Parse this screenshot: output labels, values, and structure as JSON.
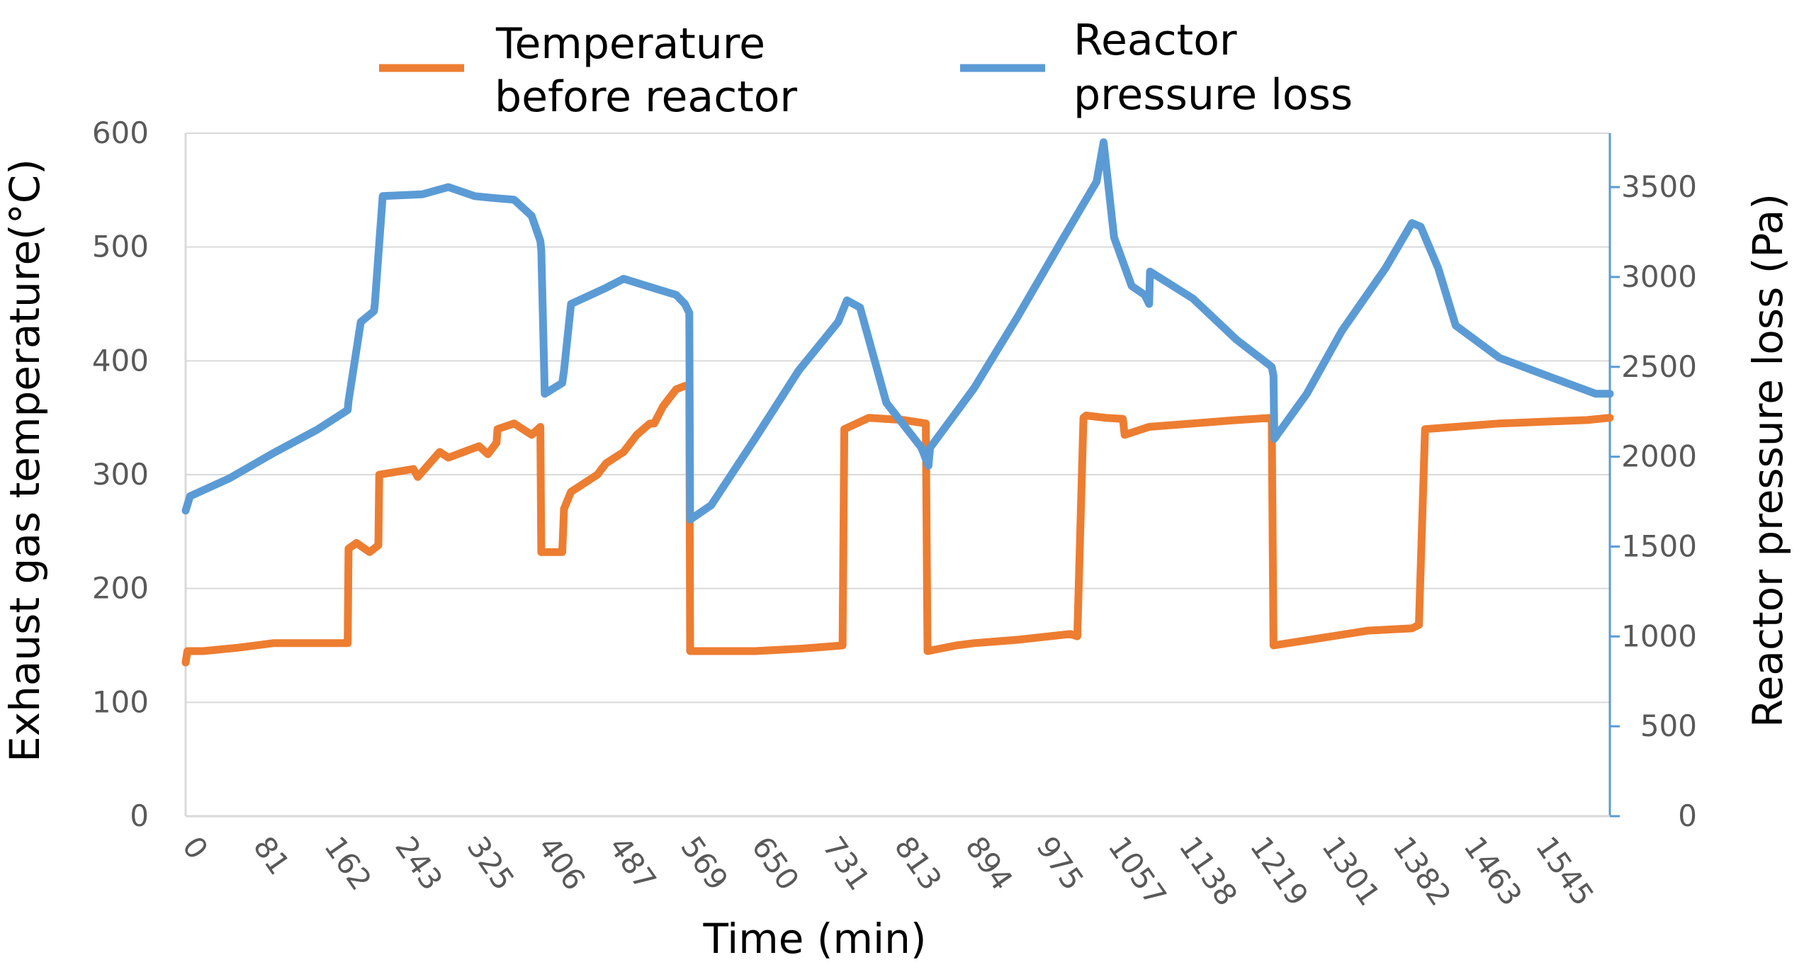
{
  "chart_data": {
    "type": "line",
    "xlabel": "Time (min)",
    "ylabel_left": "Exhaust gas temperature(°C)",
    "ylabel_right": "Reactor pressure loss (Pa)",
    "xlim": [
      0,
      1626
    ],
    "ylim_left": [
      0,
      600
    ],
    "ylim_right": [
      0,
      3800
    ],
    "x_ticks": [
      "0",
      "81",
      "162",
      "243",
      "325",
      "406",
      "487",
      "569",
      "650",
      "731",
      "813",
      "894",
      "975",
      "1057",
      "1138",
      "1219",
      "1301",
      "1382",
      "1463",
      "1545"
    ],
    "x_tick_values": [
      0,
      81,
      162,
      243,
      325,
      406,
      487,
      569,
      650,
      731,
      813,
      894,
      975,
      1057,
      1138,
      1219,
      1301,
      1382,
      1463,
      1545
    ],
    "y_ticks_left": [
      "0",
      "100",
      "200",
      "300",
      "400",
      "500",
      "600"
    ],
    "y_tick_values_left": [
      0,
      100,
      200,
      300,
      400,
      500,
      600
    ],
    "y_ticks_right": [
      "0",
      "500",
      "1000",
      "1500",
      "2000",
      "2500",
      "3000",
      "3500"
    ],
    "y_tick_values_right": [
      0,
      500,
      1000,
      1500,
      2000,
      2500,
      3000,
      3500
    ],
    "grid": true,
    "legend_position": "top",
    "colors": {
      "temperature": "#ED7D31",
      "pressure": "#5B9BD5",
      "grid": "#D9D9D9",
      "right_axis": "#5B9BD5"
    },
    "series": [
      {
        "name": "Temperature before reactor",
        "legend_lines": [
          "Temperature",
          "before reactor"
        ],
        "axis": "left",
        "x": [
          0,
          2,
          20,
          60,
          100,
          140,
          185,
          186,
          195,
          210,
          220,
          221,
          260,
          265,
          290,
          300,
          335,
          345,
          355,
          356,
          375,
          395,
          405,
          406,
          430,
          432,
          440,
          450,
          470,
          480,
          500,
          515,
          530,
          535,
          545,
          555,
          560,
          570,
          575,
          576,
          600,
          650,
          700,
          750,
          752,
          780,
          820,
          845,
          847,
          880,
          900,
          950,
          1010,
          1018,
          1025,
          1028,
          1050,
          1070,
          1072,
          1100,
          1200,
          1240,
          1242,
          1300,
          1350,
          1400,
          1408,
          1415,
          1450,
          1500,
          1600,
          1626
        ],
        "values": [
          135,
          145,
          145,
          148,
          152,
          152,
          152,
          235,
          240,
          232,
          238,
          300,
          305,
          298,
          320,
          315,
          325,
          318,
          328,
          340,
          345,
          335,
          342,
          232,
          232,
          270,
          285,
          290,
          300,
          310,
          320,
          335,
          345,
          345,
          360,
          370,
          375,
          378,
          378,
          145,
          145,
          145,
          147,
          150,
          340,
          350,
          348,
          345,
          145,
          150,
          152,
          155,
          160,
          158,
          350,
          352,
          350,
          349,
          335,
          342,
          348,
          350,
          150,
          157,
          163,
          165,
          168,
          340,
          342,
          345,
          348,
          350
        ]
      },
      {
        "name": "Reactor pressure loss",
        "legend_lines": [
          "Reactor",
          "pressure loss"
        ],
        "axis": "right",
        "x": [
          0,
          5,
          50,
          100,
          150,
          185,
          186,
          200,
          215,
          216,
          225,
          270,
          300,
          330,
          350,
          375,
          395,
          405,
          406,
          410,
          430,
          432,
          440,
          480,
          500,
          520,
          540,
          560,
          570,
          575,
          576,
          600,
          650,
          700,
          745,
          755,
          770,
          800,
          840,
          848,
          850,
          900,
          950,
          1000,
          1040,
          1048,
          1060,
          1080,
          1095,
          1100,
          1101,
          1150,
          1200,
          1240,
          1242,
          1243,
          1280,
          1320,
          1370,
          1400,
          1410,
          1430,
          1450,
          1500,
          1560,
          1610,
          1626
        ],
        "values": [
          1700,
          1780,
          1880,
          2020,
          2150,
          2260,
          2310,
          2750,
          2810,
          2850,
          3450,
          3460,
          3500,
          3450,
          3440,
          3430,
          3340,
          3200,
          3150,
          2350,
          2410,
          2480,
          2850,
          2940,
          2990,
          2960,
          2930,
          2900,
          2850,
          2800,
          1650,
          1730,
          2100,
          2480,
          2750,
          2870,
          2830,
          2300,
          2050,
          1950,
          2050,
          2380,
          2780,
          3200,
          3530,
          3750,
          3220,
          2950,
          2900,
          2850,
          3030,
          2880,
          2650,
          2500,
          2450,
          2100,
          2350,
          2700,
          3050,
          3300,
          3280,
          3050,
          2730,
          2550,
          2440,
          2350,
          2350
        ]
      }
    ]
  }
}
